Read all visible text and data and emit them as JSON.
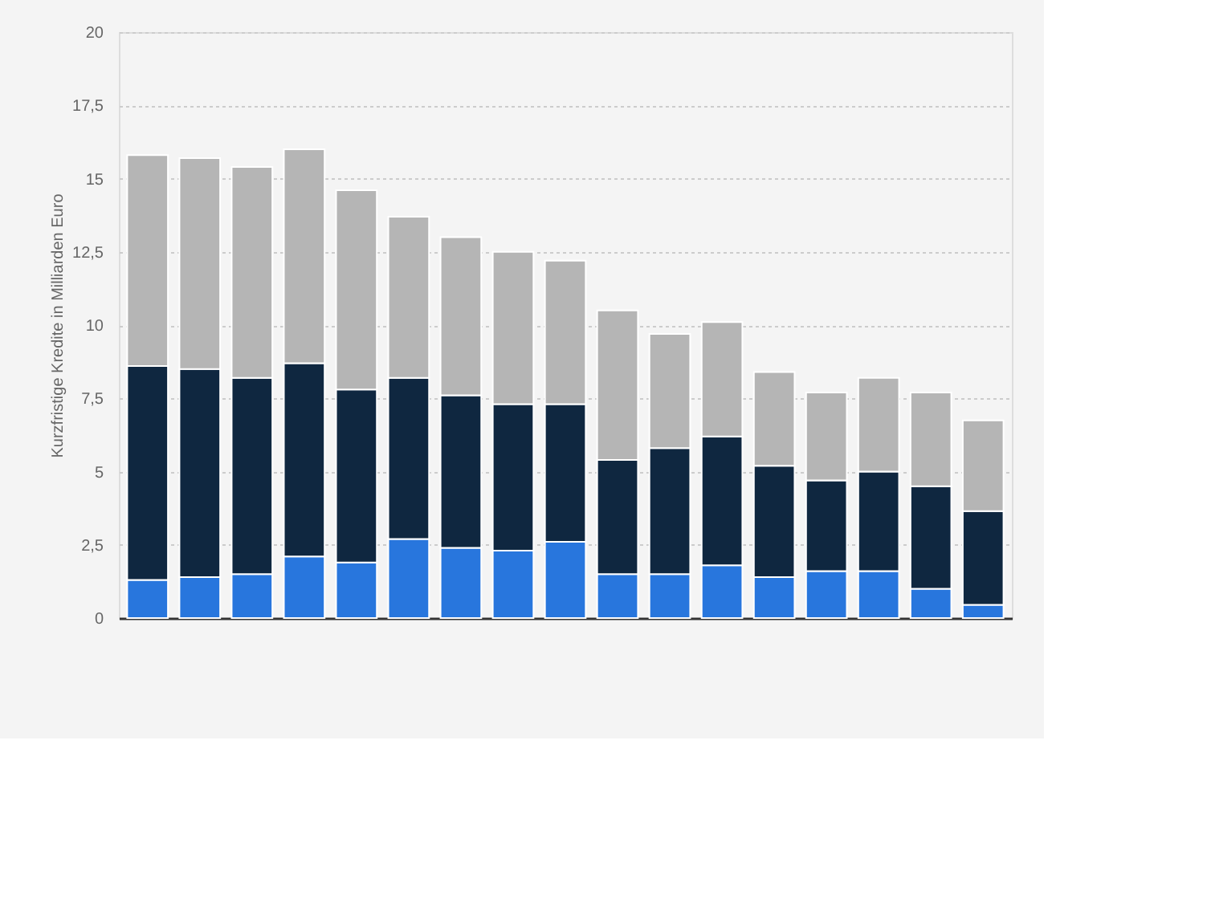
{
  "chart_data": {
    "type": "bar",
    "stacked": true,
    "ylabel": "Kurzfristige Kredite in Milliarden Euro",
    "categories": [
      null,
      null,
      null,
      null,
      null,
      null,
      null,
      null,
      null,
      null,
      null,
      null,
      null,
      null,
      null,
      null,
      null
    ],
    "series": [
      {
        "color": "#2876dd",
        "values": [
          1.3,
          1.4,
          1.5,
          2.1,
          1.9,
          2.7,
          2.4,
          2.3,
          2.6,
          1.5,
          1.5,
          1.8,
          1.4,
          1.6,
          1.6,
          1.0,
          0.45
        ]
      },
      {
        "color": "#0f2740",
        "values": [
          7.3,
          7.1,
          6.7,
          6.6,
          5.9,
          5.5,
          5.2,
          5.0,
          4.7,
          3.9,
          4.3,
          4.4,
          3.8,
          3.1,
          3.4,
          3.5,
          3.2
        ]
      },
      {
        "color": "#b5b5b5",
        "values": [
          7.2,
          7.2,
          7.2,
          7.3,
          6.8,
          5.5,
          5.4,
          5.2,
          4.9,
          5.1,
          3.9,
          3.9,
          3.2,
          3.0,
          3.2,
          3.2,
          3.1
        ]
      }
    ],
    "ylim": [
      0,
      20
    ],
    "yticks": [
      0,
      {
        "value": 2.5,
        "label": "2,5"
      },
      5,
      {
        "value": 7.5,
        "label": "7,5"
      },
      10,
      {
        "value": 12.5,
        "label": "12,5"
      },
      15,
      {
        "value": 17.5,
        "label": "17,5"
      },
      20
    ],
    "grid": "y",
    "legend": false,
    "tick_labels": "y"
  }
}
